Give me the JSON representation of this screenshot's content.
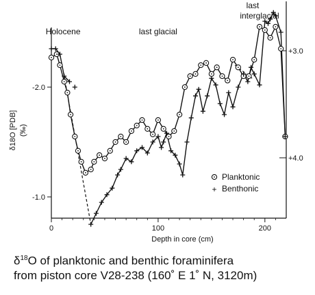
{
  "caption": {
    "line1_delta": "δ",
    "line1_sup": "18",
    "line1_rest": "O of planktonic and benthic foraminifera",
    "line2": "from piston core V28-238 (160˚  E 1˚   N, 3120m)"
  },
  "chart_data": {
    "type": "line",
    "title": "",
    "xlabel": "Depth in core (cm)",
    "ylabel_main": "δ18O [PDB]",
    "ylabel_unit": "(‰)",
    "xlim": [
      0,
      220
    ],
    "ylim_left": [
      -0.8,
      -2.8
    ],
    "ylim_right": [
      2.85,
      4.55
    ],
    "x_ticks": [
      0,
      100,
      200
    ],
    "x_tick_labels": [
      "0",
      "100",
      "200"
    ],
    "y_left_ticks": [
      -2.0,
      -1.0
    ],
    "y_left_tick_labels": [
      "-2.0",
      "-1.0"
    ],
    "y_right_ticks": [
      3.0,
      4.0
    ],
    "y_right_tick_labels": [
      "+3.0",
      "+4.0"
    ],
    "legend": {
      "position": "lower-right",
      "items": [
        {
          "symbol": "⊙",
          "label": "Planktonic"
        },
        {
          "symbol": "+",
          "label": "Benthonic"
        }
      ]
    },
    "annotations": [
      {
        "text": "Holocene",
        "x": 11
      },
      {
        "text": "last glacial",
        "x": 100
      },
      {
        "text": "last",
        "x": 195
      },
      {
        "text": "interglacial",
        "x": 195
      }
    ],
    "series": [
      {
        "name": "Planktonic",
        "axis": "left",
        "marker": "circle",
        "x": [
          0,
          5,
          8,
          12,
          15,
          18,
          22,
          25,
          28,
          32,
          37,
          40,
          45,
          50,
          55,
          60,
          65,
          70,
          75,
          80,
          85,
          90,
          95,
          100,
          105,
          110,
          115,
          120,
          125,
          130,
          135,
          140,
          145,
          150,
          155,
          160,
          165,
          170,
          175,
          180,
          185,
          190,
          195,
          200,
          205,
          210,
          215,
          219
        ],
        "y": [
          -2.27,
          -2.3,
          -2.2,
          -2.05,
          -1.95,
          -1.75,
          -1.55,
          -1.42,
          -1.32,
          -1.22,
          -1.25,
          -1.32,
          -1.38,
          -1.35,
          -1.42,
          -1.5,
          -1.55,
          -1.5,
          -1.6,
          -1.65,
          -1.7,
          -1.62,
          -1.57,
          -1.7,
          -1.62,
          -1.55,
          -1.6,
          -1.75,
          -2.0,
          -2.1,
          -2.12,
          -2.2,
          -2.22,
          -2.12,
          -2.18,
          -2.1,
          -2.06,
          -2.25,
          -2.18,
          -2.1,
          -2.1,
          -2.25,
          -2.55,
          -2.52,
          -2.45,
          -2.55,
          -2.35,
          -1.55
        ]
      },
      {
        "name": "Benthonic",
        "axis": "left",
        "marker": "plus",
        "x": [
          0,
          4,
          8,
          12,
          17,
          22,
          37,
          42,
          47,
          52,
          57,
          62,
          65,
          70,
          75,
          80,
          85,
          90,
          95,
          100,
          103,
          105,
          108,
          112,
          116,
          120,
          123,
          127,
          131,
          135,
          138,
          142,
          146,
          150,
          154,
          158,
          162,
          166,
          170,
          175,
          180,
          184,
          187,
          190,
          195,
          200,
          203,
          205,
          208,
          210,
          215,
          219
        ],
        "y": [
          -2.35,
          -2.35,
          -2.3,
          -2.1,
          -2.05,
          -2.0,
          -0.75,
          -0.85,
          -0.95,
          -1.02,
          -1.08,
          -1.2,
          -1.25,
          -1.35,
          -1.32,
          -1.42,
          -1.45,
          -1.4,
          -1.5,
          -1.55,
          -1.45,
          -1.5,
          -1.58,
          -1.42,
          -1.38,
          -1.3,
          -1.2,
          -1.5,
          -1.72,
          -1.92,
          -1.98,
          -1.78,
          -1.92,
          -2.08,
          -2.02,
          -1.85,
          -1.75,
          -1.95,
          -1.82,
          -2.0,
          -2.12,
          -2.05,
          -2.18,
          -2.12,
          -2.02,
          -2.6,
          -2.58,
          -2.62,
          -2.68,
          -2.65,
          -2.5,
          -1.55
        ]
      }
    ],
    "dashed_segments": [
      {
        "x": [
          12,
          37
        ],
        "y": [
          -2.1,
          -0.75
        ]
      },
      {
        "x": [
          172,
          188
        ],
        "y": [
          -2.2,
          -2.08
        ]
      }
    ]
  }
}
